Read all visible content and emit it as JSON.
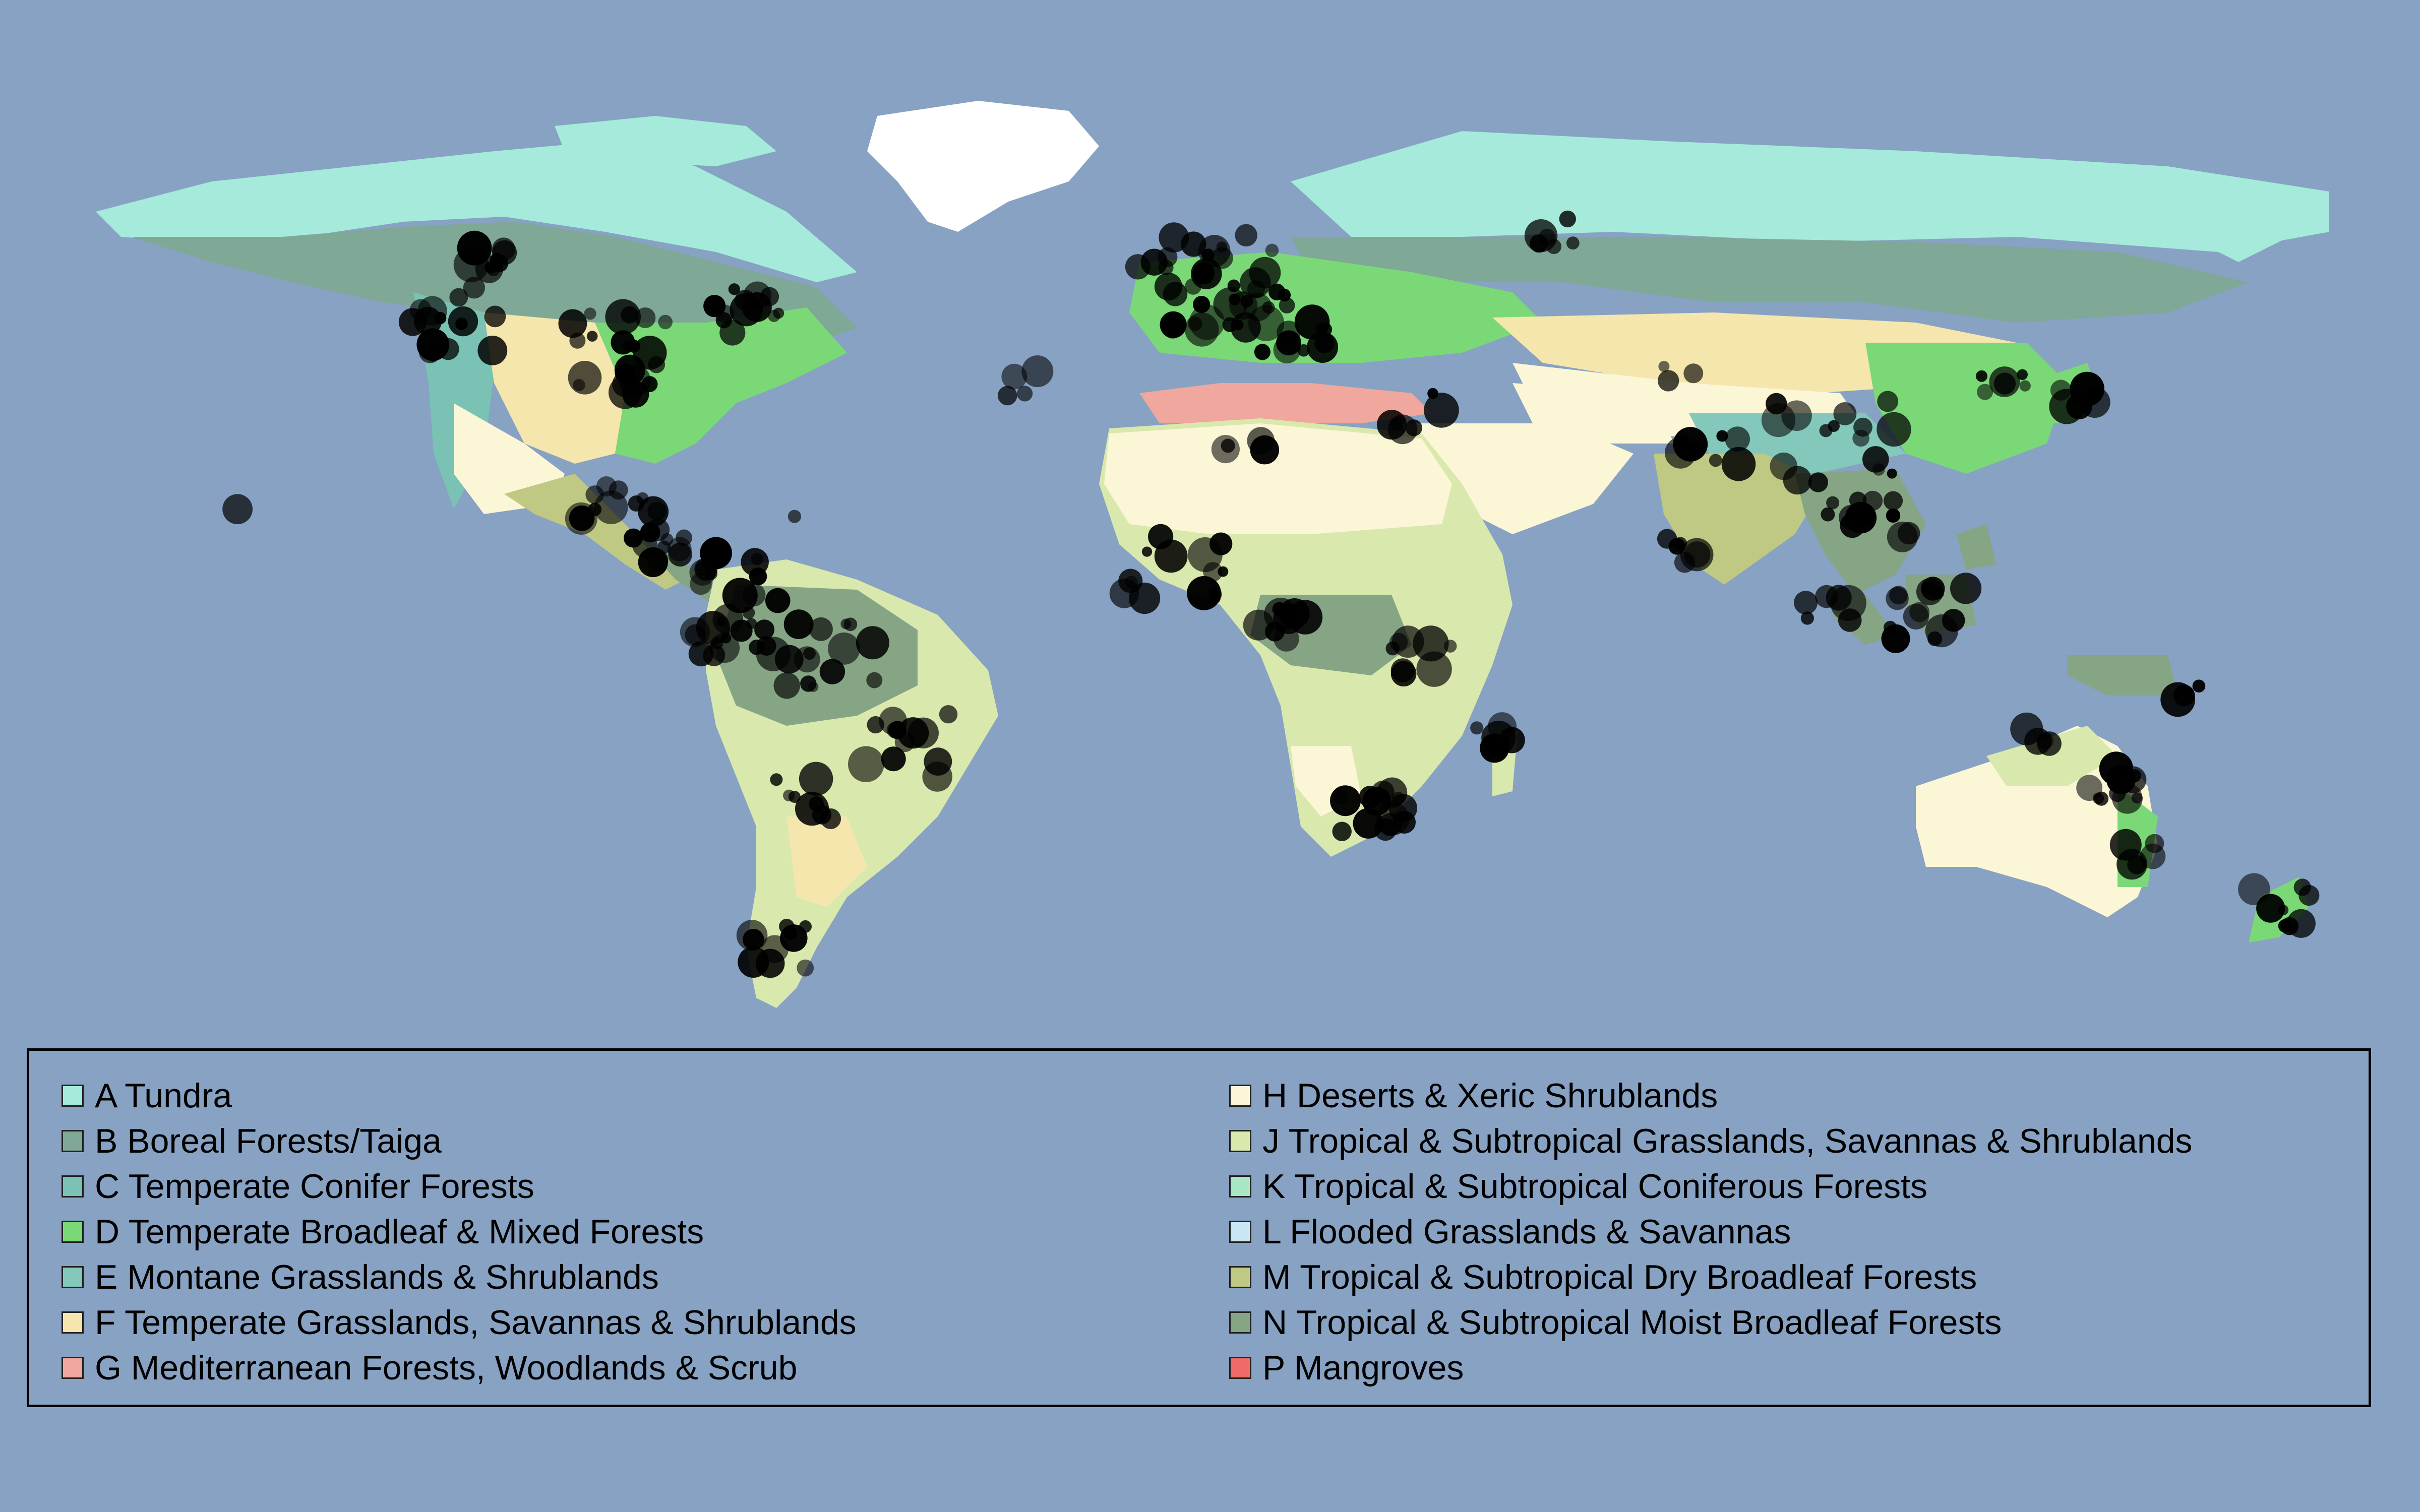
{
  "legend": {
    "left": [
      {
        "code": "A",
        "label": "A Tundra",
        "color": "#a5eadb"
      },
      {
        "code": "B",
        "label": "B Boreal Forests/Taiga",
        "color": "#7fa896"
      },
      {
        "code": "C",
        "label": "C Temperate Conifer Forests",
        "color": "#79c2b4"
      },
      {
        "code": "D",
        "label": "D Temperate Broadleaf & Mixed Forests",
        "color": "#7bd877"
      },
      {
        "code": "E",
        "label": "E Montane Grasslands & Shrublands",
        "color": "#83c8ba"
      },
      {
        "code": "F",
        "label": "F Temperate Grasslands, Savannas & Shrublands",
        "color": "#f4e6ad"
      },
      {
        "code": "G",
        "label": "G Mediterranean Forests, Woodlands & Scrub",
        "color": "#f0a79d"
      }
    ],
    "right": [
      {
        "code": "H",
        "label": "H Deserts & Xeric Shrublands",
        "color": "#fbf6d6"
      },
      {
        "code": "J",
        "label": "J Tropical & Subtropical Grasslands, Savannas & Shrublands",
        "color": "#d9e8ad"
      },
      {
        "code": "K",
        "label": "K Tropical & Subtropical Coniferous Forests",
        "color": "#a9e6c4"
      },
      {
        "code": "L",
        "label": "L Flooded Grasslands & Savannas",
        "color": "#c8e6f4"
      },
      {
        "code": "M",
        "label": "M Tropical & Subtropical Dry Broadleaf Forests",
        "color": "#bfc984"
      },
      {
        "code": "N",
        "label": "N Tropical & Subtropical Moist Broadleaf Forests",
        "color": "#86a585"
      },
      {
        "code": "P",
        "label": "P Mangroves",
        "color": "#f06a6a"
      }
    ]
  },
  "map_colors": {
    "ocean": "#87a2c2",
    "greenland": "#ffffff",
    "point": "#000000"
  }
}
